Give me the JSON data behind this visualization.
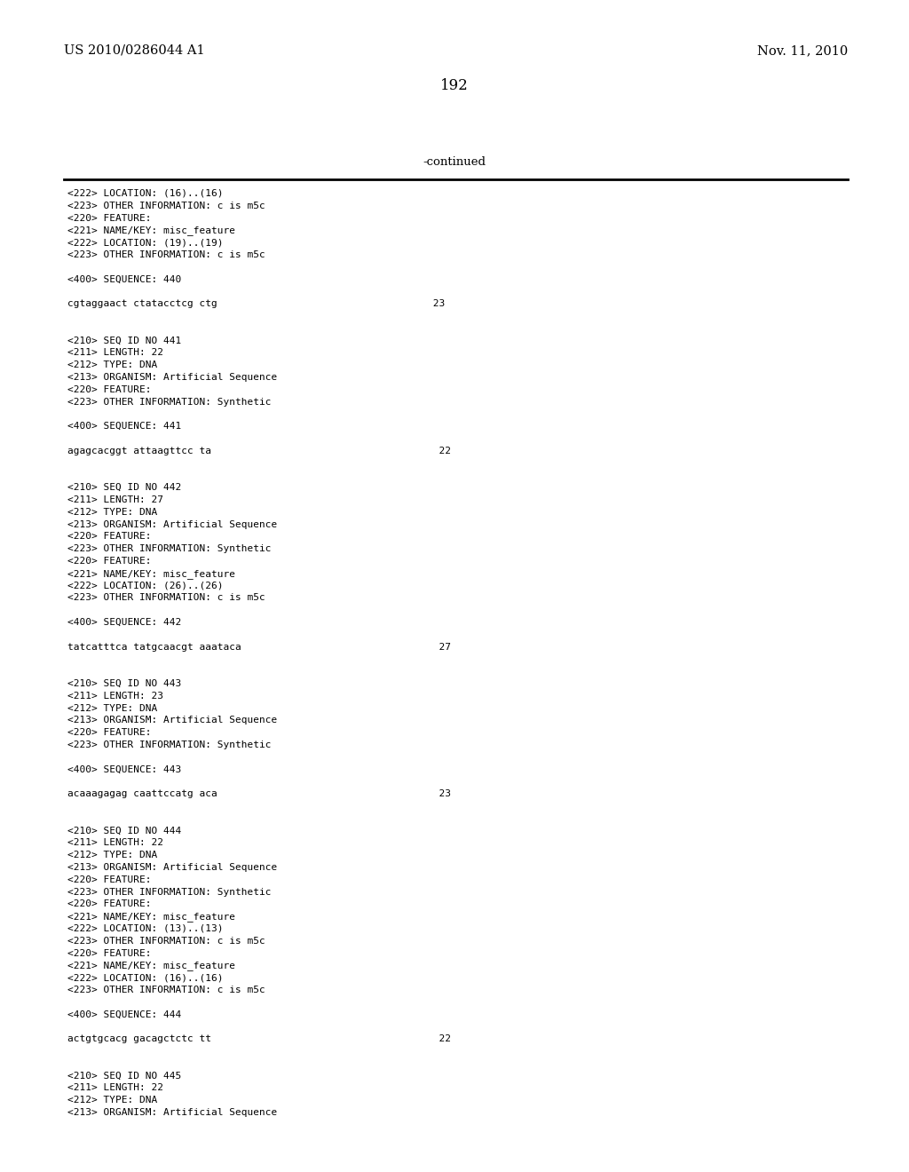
{
  "header_left": "US 2010/0286044 A1",
  "header_right": "Nov. 11, 2010",
  "page_number": "192",
  "continued_label": "-continued",
  "background_color": "#ffffff",
  "text_color": "#000000",
  "font_size_header": 10.5,
  "font_size_body": 8.0,
  "font_size_page": 12.0,
  "font_size_continued": 9.5,
  "lines": [
    "<222> LOCATION: (16)..(16)",
    "<223> OTHER INFORMATION: c is m5c",
    "<220> FEATURE:",
    "<221> NAME/KEY: misc_feature",
    "<222> LOCATION: (19)..(19)",
    "<223> OTHER INFORMATION: c is m5c",
    "",
    "<400> SEQUENCE: 440",
    "",
    "cgtaggaact ctatacctcg ctg                                    23",
    "",
    "",
    "<210> SEQ ID NO 441",
    "<211> LENGTH: 22",
    "<212> TYPE: DNA",
    "<213> ORGANISM: Artificial Sequence",
    "<220> FEATURE:",
    "<223> OTHER INFORMATION: Synthetic",
    "",
    "<400> SEQUENCE: 441",
    "",
    "agagcacggt attaagttcc ta                                      22",
    "",
    "",
    "<210> SEQ ID NO 442",
    "<211> LENGTH: 27",
    "<212> TYPE: DNA",
    "<213> ORGANISM: Artificial Sequence",
    "<220> FEATURE:",
    "<223> OTHER INFORMATION: Synthetic",
    "<220> FEATURE:",
    "<221> NAME/KEY: misc_feature",
    "<222> LOCATION: (26)..(26)",
    "<223> OTHER INFORMATION: c is m5c",
    "",
    "<400> SEQUENCE: 442",
    "",
    "tatcatttca tatgcaacgt aaataca                                 27",
    "",
    "",
    "<210> SEQ ID NO 443",
    "<211> LENGTH: 23",
    "<212> TYPE: DNA",
    "<213> ORGANISM: Artificial Sequence",
    "<220> FEATURE:",
    "<223> OTHER INFORMATION: Synthetic",
    "",
    "<400> SEQUENCE: 443",
    "",
    "acaaagagag caattccatg aca                                     23",
    "",
    "",
    "<210> SEQ ID NO 444",
    "<211> LENGTH: 22",
    "<212> TYPE: DNA",
    "<213> ORGANISM: Artificial Sequence",
    "<220> FEATURE:",
    "<223> OTHER INFORMATION: Synthetic",
    "<220> FEATURE:",
    "<221> NAME/KEY: misc_feature",
    "<222> LOCATION: (13)..(13)",
    "<223> OTHER INFORMATION: c is m5c",
    "<220> FEATURE:",
    "<221> NAME/KEY: misc_feature",
    "<222> LOCATION: (16)..(16)",
    "<223> OTHER INFORMATION: c is m5c",
    "",
    "<400> SEQUENCE: 444",
    "",
    "actgtgcacg gacagctctc tt                                      22",
    "",
    "",
    "<210> SEQ ID NO 445",
    "<211> LENGTH: 22",
    "<212> TYPE: DNA",
    "<213> ORGANISM: Artificial Sequence"
  ]
}
